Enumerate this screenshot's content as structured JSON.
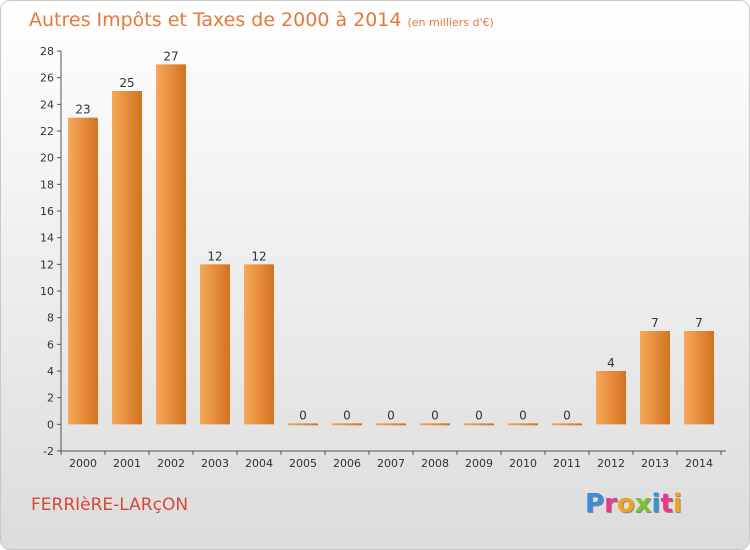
{
  "header": {
    "title": "Autres Impôts et Taxes de 2000 à 2014",
    "subtitle": "(en milliers d'€)"
  },
  "footer": {
    "commune": "FERRIèRE-LARçON",
    "logo": "Proxiti",
    "logo_colors": [
      "#3b8fd6",
      "#e83a8a",
      "#f0a31e",
      "#7dbf2f",
      "#3b8fd6",
      "#e83a8a",
      "#f0a31e"
    ]
  },
  "colors": {
    "bar_top": "#f7a85a",
    "bar_bottom": "#d2731f",
    "title": "#e3793c",
    "commune": "#d9473a",
    "axis_text": "#333333"
  },
  "chart_data": {
    "type": "bar",
    "categories": [
      "2000",
      "2001",
      "2002",
      "2003",
      "2004",
      "2005",
      "2006",
      "2007",
      "2008",
      "2009",
      "2010",
      "2011",
      "2012",
      "2013",
      "2014"
    ],
    "values": [
      23,
      25,
      27,
      12,
      12,
      0,
      0,
      0,
      0,
      0,
      0,
      0,
      4,
      7,
      7
    ],
    "data_labels": [
      "23",
      "25",
      "27",
      "12",
      "12",
      "0",
      "0",
      "0",
      "0",
      "0",
      "0",
      "0",
      "4",
      "7",
      "7"
    ],
    "yticks": [
      -2,
      0,
      2,
      4,
      6,
      8,
      10,
      12,
      14,
      16,
      18,
      20,
      22,
      24,
      26,
      28
    ],
    "ylim": [
      -2,
      28
    ],
    "grid": false,
    "legend": "none",
    "title": "Autres Impôts et Taxes de 2000 à 2014",
    "xlabel": "",
    "ylabel": ""
  }
}
